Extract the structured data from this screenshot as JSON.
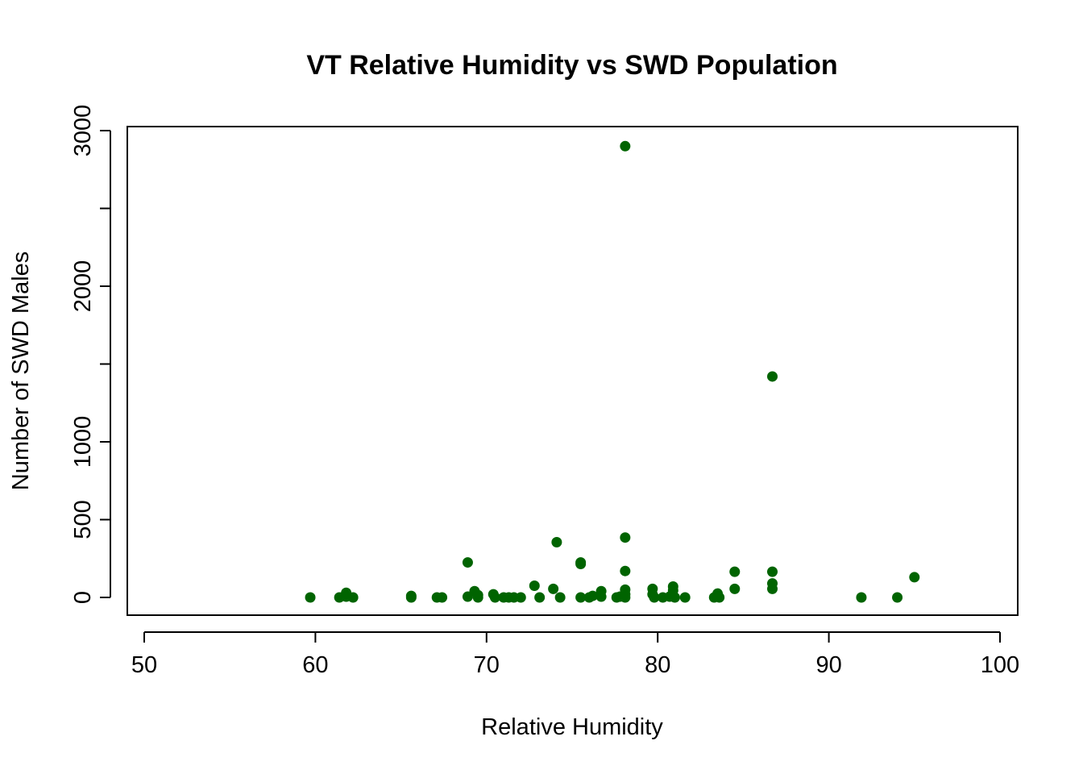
{
  "chart_data": {
    "type": "scatter",
    "title": "VT Relative Humidity vs SWD Population",
    "xlabel": "Relative Humidity",
    "ylabel": "Number of SWD Males",
    "xlim": [
      50,
      100
    ],
    "ylim": [
      0,
      3000
    ],
    "x_ticks": [
      "50",
      "60",
      "70",
      "80",
      "90",
      "100"
    ],
    "y_ticks": [
      "0",
      "500",
      "1000",
      "2000",
      "3000"
    ],
    "y_minor_ticks": [
      1500,
      2500
    ],
    "grid": false,
    "legend": "none",
    "point_color": "#006400",
    "series": [
      {
        "points": [
          [
            59.7,
            0
          ],
          [
            61.4,
            0
          ],
          [
            61.8,
            30
          ],
          [
            61.8,
            5
          ],
          [
            62.2,
            0
          ],
          [
            65.6,
            10
          ],
          [
            65.6,
            0
          ],
          [
            67.1,
            0
          ],
          [
            67.4,
            0
          ],
          [
            68.9,
            225
          ],
          [
            68.9,
            5
          ],
          [
            69.3,
            40
          ],
          [
            69.5,
            0
          ],
          [
            69.5,
            15
          ],
          [
            70.4,
            20
          ],
          [
            70.5,
            0
          ],
          [
            71.0,
            0
          ],
          [
            71.3,
            0
          ],
          [
            71.6,
            0
          ],
          [
            72.0,
            0
          ],
          [
            72.8,
            75
          ],
          [
            73.1,
            0
          ],
          [
            73.9,
            55
          ],
          [
            74.1,
            355
          ],
          [
            74.3,
            0
          ],
          [
            75.5,
            215
          ],
          [
            75.5,
            225
          ],
          [
            75.5,
            0
          ],
          [
            76.0,
            0
          ],
          [
            76.2,
            10
          ],
          [
            76.7,
            40
          ],
          [
            76.7,
            5
          ],
          [
            77.6,
            0
          ],
          [
            77.8,
            5
          ],
          [
            78.1,
            2900
          ],
          [
            78.1,
            385
          ],
          [
            78.1,
            170
          ],
          [
            78.1,
            50
          ],
          [
            78.1,
            20
          ],
          [
            78.1,
            0
          ],
          [
            79.7,
            55
          ],
          [
            79.7,
            20
          ],
          [
            79.8,
            0
          ],
          [
            80.3,
            0
          ],
          [
            80.7,
            5
          ],
          [
            80.9,
            70
          ],
          [
            80.9,
            45
          ],
          [
            81.0,
            0
          ],
          [
            81.6,
            0
          ],
          [
            83.3,
            0
          ],
          [
            83.5,
            25
          ],
          [
            83.6,
            0
          ],
          [
            84.5,
            165
          ],
          [
            84.5,
            55
          ],
          [
            86.7,
            1420
          ],
          [
            86.7,
            165
          ],
          [
            86.7,
            90
          ],
          [
            86.7,
            55
          ],
          [
            91.9,
            0
          ],
          [
            94.0,
            0
          ],
          [
            95.0,
            130
          ]
        ]
      }
    ]
  }
}
